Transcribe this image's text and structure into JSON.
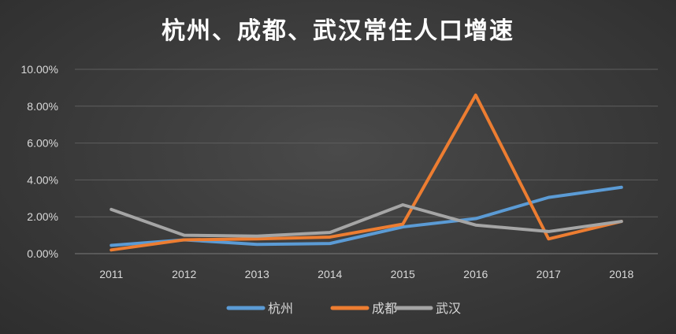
{
  "chart_data": {
    "type": "line",
    "title": "杭州、成都、武汉常住人口增速",
    "xlabel": "",
    "ylabel": "",
    "categories": [
      "2011",
      "2012",
      "2013",
      "2014",
      "2015",
      "2016",
      "2017",
      "2018"
    ],
    "ylim": [
      0,
      10
    ],
    "yticks": [
      "0.00%",
      "2.00%",
      "4.00%",
      "6.00%",
      "8.00%",
      "10.00%"
    ],
    "grid": true,
    "legend_position": "bottom",
    "series": [
      {
        "name": "杭州",
        "color": "#5b9bd5",
        "values": [
          0.45,
          0.75,
          0.5,
          0.55,
          1.45,
          1.9,
          3.05,
          3.6
        ]
      },
      {
        "name": "成都",
        "color": "#ed7d31",
        "values": [
          0.2,
          0.75,
          0.8,
          0.9,
          1.6,
          8.6,
          0.8,
          1.75
        ]
      },
      {
        "name": "武汉",
        "color": "#a5a5a5",
        "values": [
          2.4,
          1.0,
          0.95,
          1.15,
          2.65,
          1.55,
          1.2,
          1.75
        ]
      }
    ]
  }
}
